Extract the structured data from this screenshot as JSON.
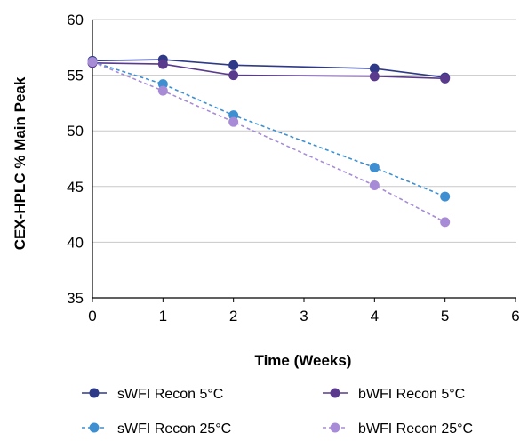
{
  "chart_data": {
    "type": "line",
    "xlabel": "Time (Weeks)",
    "ylabel": "CEX-HPLC % Main Peak",
    "xlim": [
      0,
      6
    ],
    "ylim": [
      35,
      60
    ],
    "x_ticks": [
      0,
      1,
      2,
      3,
      4,
      5,
      6
    ],
    "y_ticks": [
      35,
      40,
      45,
      50,
      55,
      60
    ],
    "grid": "horizontal",
    "legend_position": "bottom",
    "series": [
      {
        "name": "sWFI Recon 5°C",
        "color": "#2e3a87",
        "dashed": false,
        "x": [
          0,
          1,
          2,
          4,
          5
        ],
        "y": [
          56.3,
          56.4,
          55.9,
          55.6,
          54.8
        ]
      },
      {
        "name": "bWFI Recon 5°C",
        "color": "#5a3a8c",
        "dashed": false,
        "x": [
          0,
          1,
          2,
          4,
          5
        ],
        "y": [
          56.1,
          56.0,
          55.0,
          54.9,
          54.7
        ]
      },
      {
        "name": "sWFI Recon 25°C",
        "color": "#3d8fd1",
        "dashed": true,
        "x": [
          0,
          1,
          2,
          4,
          5
        ],
        "y": [
          56.2,
          54.2,
          51.4,
          46.7,
          44.1
        ]
      },
      {
        "name": "bWFI Recon 25°C",
        "color": "#a78bd6",
        "dashed": true,
        "x": [
          0,
          1,
          2,
          4,
          5
        ],
        "y": [
          56.2,
          53.6,
          50.8,
          45.1,
          41.8
        ]
      }
    ]
  }
}
